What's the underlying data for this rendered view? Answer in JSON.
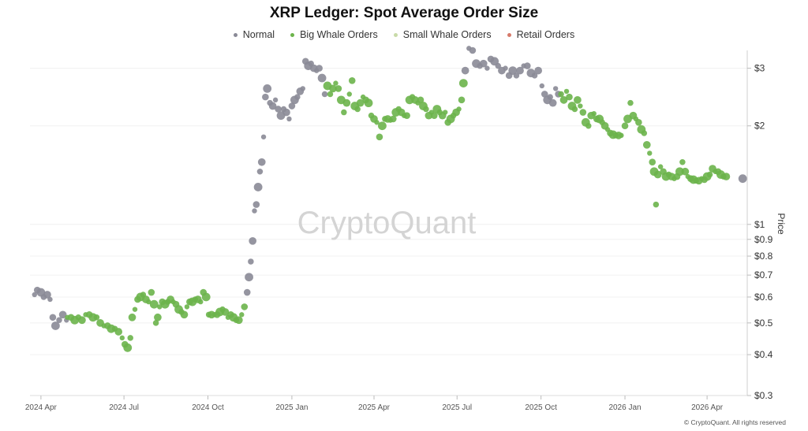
{
  "title": "XRP Ledger: Spot Average Order Size",
  "legend": [
    {
      "label": "Normal",
      "color": "#8a8a96"
    },
    {
      "label": "Big Whale Orders",
      "color": "#6cb44b"
    },
    {
      "label": "Small Whale Orders",
      "color": "#c9dba8"
    },
    {
      "label": "Retail Orders",
      "color": "#d77a6a"
    }
  ],
  "watermark": "CryptoQuant",
  "copyright": "© CryptoQuant. All rights reserved",
  "chart_data": {
    "type": "scatter",
    "title": "XRP Ledger: Spot Average Order Size",
    "ylabel": "Price",
    "yscale": "log",
    "ylim": [
      0.3,
      3.4
    ],
    "xlim": [
      "2024-03-20",
      "2026-05-15"
    ],
    "yticks": [
      {
        "value": 3,
        "label": "$3"
      },
      {
        "value": 2,
        "label": "$2"
      },
      {
        "value": 1,
        "label": "$1"
      },
      {
        "value": 0.9,
        "label": "$0.9"
      },
      {
        "value": 0.8,
        "label": "$0.8"
      },
      {
        "value": 0.7,
        "label": "$0.7"
      },
      {
        "value": 0.6,
        "label": "$0.6"
      },
      {
        "value": 0.5,
        "label": "$0.5"
      },
      {
        "value": 0.4,
        "label": "$0.4"
      },
      {
        "value": 0.3,
        "label": "$0.3"
      }
    ],
    "xticks": [
      {
        "date": "2024-04-01",
        "label": "2024 Apr"
      },
      {
        "date": "2024-07-01",
        "label": "2024 Jul"
      },
      {
        "date": "2024-10-01",
        "label": "2024 Oct"
      },
      {
        "date": "2025-01-01",
        "label": "2025 Jan"
      },
      {
        "date": "2025-04-01",
        "label": "2025 Apr"
      },
      {
        "date": "2025-07-01",
        "label": "2025 Jul"
      },
      {
        "date": "2025-10-01",
        "label": "2025 Oct"
      },
      {
        "date": "2026-01-01",
        "label": "2026 Jan"
      },
      {
        "date": "2026-04-01",
        "label": "2026 Apr"
      }
    ],
    "grid": true,
    "legend_position": "top-center",
    "series": [
      {
        "name": "Normal",
        "color": "#8a8a96",
        "points": [
          [
            "2024-03-25",
            0.61
          ],
          [
            "2024-03-28",
            0.63
          ],
          [
            "2024-04-01",
            0.62
          ],
          [
            "2024-04-04",
            0.6
          ],
          [
            "2024-04-08",
            0.61
          ],
          [
            "2024-04-11",
            0.59
          ],
          [
            "2024-04-14",
            0.52
          ],
          [
            "2024-04-17",
            0.49
          ],
          [
            "2024-04-21",
            0.51
          ],
          [
            "2024-04-25",
            0.53
          ],
          [
            "2024-04-29",
            0.51
          ],
          [
            "2024-11-13",
            0.62
          ],
          [
            "2024-11-15",
            0.69
          ],
          [
            "2024-11-17",
            0.77
          ],
          [
            "2024-11-19",
            0.89
          ],
          [
            "2024-11-21",
            1.1
          ],
          [
            "2024-11-23",
            1.15
          ],
          [
            "2024-11-25",
            1.3
          ],
          [
            "2024-11-27",
            1.45
          ],
          [
            "2024-11-29",
            1.55
          ],
          [
            "2024-12-01",
            1.85
          ],
          [
            "2024-12-03",
            2.45
          ],
          [
            "2024-12-05",
            2.6
          ],
          [
            "2024-12-08",
            2.35
          ],
          [
            "2024-12-11",
            2.3
          ],
          [
            "2024-12-14",
            2.4
          ],
          [
            "2024-12-17",
            2.25
          ],
          [
            "2024-12-20",
            2.15
          ],
          [
            "2024-12-23",
            2.25
          ],
          [
            "2024-12-26",
            2.2
          ],
          [
            "2024-12-29",
            2.1
          ],
          [
            "2025-01-01",
            2.3
          ],
          [
            "2025-01-04",
            2.4
          ],
          [
            "2025-01-07",
            2.45
          ],
          [
            "2025-01-10",
            2.55
          ],
          [
            "2025-01-13",
            2.6
          ],
          [
            "2025-01-16",
            3.15
          ],
          [
            "2025-01-19",
            3.05
          ],
          [
            "2025-01-22",
            3.1
          ],
          [
            "2025-01-25",
            3.0
          ],
          [
            "2025-01-28",
            2.95
          ],
          [
            "2025-01-31",
            3.0
          ],
          [
            "2025-02-03",
            2.8
          ],
          [
            "2025-02-06",
            2.5
          ],
          [
            "2025-07-10",
            2.95
          ],
          [
            "2025-07-14",
            3.45
          ],
          [
            "2025-07-18",
            3.4
          ],
          [
            "2025-07-22",
            3.1
          ],
          [
            "2025-07-26",
            3.05
          ],
          [
            "2025-07-30",
            3.1
          ],
          [
            "2025-08-03",
            3.0
          ],
          [
            "2025-08-07",
            3.2
          ],
          [
            "2025-08-11",
            3.15
          ],
          [
            "2025-08-15",
            3.05
          ],
          [
            "2025-08-19",
            2.95
          ],
          [
            "2025-08-23",
            3.0
          ],
          [
            "2025-08-27",
            2.85
          ],
          [
            "2025-08-31",
            2.95
          ],
          [
            "2025-09-04",
            2.85
          ],
          [
            "2025-09-08",
            2.95
          ],
          [
            "2025-09-12",
            3.05
          ],
          [
            "2025-09-16",
            3.05
          ],
          [
            "2025-09-20",
            2.9
          ],
          [
            "2025-09-24",
            2.85
          ],
          [
            "2025-09-28",
            2.95
          ],
          [
            "2025-10-02",
            2.65
          ],
          [
            "2025-10-05",
            2.5
          ],
          [
            "2025-10-08",
            2.4
          ],
          [
            "2025-10-11",
            2.45
          ],
          [
            "2025-10-14",
            2.35
          ],
          [
            "2025-10-17",
            2.6
          ],
          [
            "2025-10-20",
            2.5
          ],
          [
            "2026-05-10",
            1.38
          ]
        ]
      },
      {
        "name": "Big Whale Orders",
        "color": "#6cb44b",
        "points": [
          [
            "2024-04-30",
            0.52
          ],
          [
            "2024-05-04",
            0.52
          ],
          [
            "2024-05-08",
            0.51
          ],
          [
            "2024-05-12",
            0.52
          ],
          [
            "2024-05-16",
            0.51
          ],
          [
            "2024-05-20",
            0.53
          ],
          [
            "2024-05-24",
            0.53
          ],
          [
            "2024-05-28",
            0.52
          ],
          [
            "2024-06-01",
            0.52
          ],
          [
            "2024-06-05",
            0.5
          ],
          [
            "2024-06-09",
            0.49
          ],
          [
            "2024-06-13",
            0.49
          ],
          [
            "2024-06-17",
            0.48
          ],
          [
            "2024-06-21",
            0.48
          ],
          [
            "2024-06-25",
            0.47
          ],
          [
            "2024-06-29",
            0.45
          ],
          [
            "2024-07-02",
            0.43
          ],
          [
            "2024-07-05",
            0.42
          ],
          [
            "2024-07-08",
            0.45
          ],
          [
            "2024-07-10",
            0.52
          ],
          [
            "2024-07-13",
            0.55
          ],
          [
            "2024-07-16",
            0.59
          ],
          [
            "2024-07-19",
            0.6
          ],
          [
            "2024-07-22",
            0.61
          ],
          [
            "2024-07-25",
            0.59
          ],
          [
            "2024-07-28",
            0.58
          ],
          [
            "2024-07-31",
            0.62
          ],
          [
            "2024-08-03",
            0.57
          ],
          [
            "2024-08-05",
            0.5
          ],
          [
            "2024-08-07",
            0.52
          ],
          [
            "2024-08-09",
            0.56
          ],
          [
            "2024-08-12",
            0.58
          ],
          [
            "2024-08-15",
            0.57
          ],
          [
            "2024-08-18",
            0.58
          ],
          [
            "2024-08-21",
            0.59
          ],
          [
            "2024-08-24",
            0.58
          ],
          [
            "2024-08-27",
            0.57
          ],
          [
            "2024-08-30",
            0.55
          ],
          [
            "2024-09-02",
            0.54
          ],
          [
            "2024-09-05",
            0.53
          ],
          [
            "2024-09-08",
            0.56
          ],
          [
            "2024-09-11",
            0.58
          ],
          [
            "2024-09-14",
            0.58
          ],
          [
            "2024-09-17",
            0.59
          ],
          [
            "2024-09-20",
            0.59
          ],
          [
            "2024-09-23",
            0.58
          ],
          [
            "2024-09-26",
            0.62
          ],
          [
            "2024-09-29",
            0.6
          ],
          [
            "2024-10-02",
            0.53
          ],
          [
            "2024-10-05",
            0.53
          ],
          [
            "2024-10-08",
            0.53
          ],
          [
            "2024-10-11",
            0.53
          ],
          [
            "2024-10-14",
            0.54
          ],
          [
            "2024-10-17",
            0.55
          ],
          [
            "2024-10-20",
            0.54
          ],
          [
            "2024-10-23",
            0.52
          ],
          [
            "2024-10-26",
            0.53
          ],
          [
            "2024-10-29",
            0.52
          ],
          [
            "2024-11-01",
            0.51
          ],
          [
            "2024-11-04",
            0.51
          ],
          [
            "2024-11-07",
            0.53
          ],
          [
            "2024-11-10",
            0.56
          ],
          [
            "2025-02-09",
            2.65
          ],
          [
            "2025-02-12",
            2.5
          ],
          [
            "2025-02-15",
            2.6
          ],
          [
            "2025-02-18",
            2.7
          ],
          [
            "2025-02-21",
            2.6
          ],
          [
            "2025-02-24",
            2.4
          ],
          [
            "2025-02-27",
            2.2
          ],
          [
            "2025-03-02",
            2.35
          ],
          [
            "2025-03-05",
            2.5
          ],
          [
            "2025-03-08",
            2.75
          ],
          [
            "2025-03-11",
            2.3
          ],
          [
            "2025-03-14",
            2.25
          ],
          [
            "2025-03-17",
            2.35
          ],
          [
            "2025-03-20",
            2.45
          ],
          [
            "2025-03-23",
            2.4
          ],
          [
            "2025-03-26",
            2.35
          ],
          [
            "2025-03-29",
            2.15
          ],
          [
            "2025-04-01",
            2.1
          ],
          [
            "2025-04-04",
            2.05
          ],
          [
            "2025-04-07",
            1.85
          ],
          [
            "2025-04-10",
            2.0
          ],
          [
            "2025-04-13",
            2.1
          ],
          [
            "2025-04-16",
            2.1
          ],
          [
            "2025-04-19",
            2.08
          ],
          [
            "2025-04-22",
            2.1
          ],
          [
            "2025-04-25",
            2.2
          ],
          [
            "2025-04-28",
            2.25
          ],
          [
            "2025-05-01",
            2.2
          ],
          [
            "2025-05-04",
            2.15
          ],
          [
            "2025-05-07",
            2.15
          ],
          [
            "2025-05-10",
            2.4
          ],
          [
            "2025-05-13",
            2.45
          ],
          [
            "2025-05-16",
            2.4
          ],
          [
            "2025-05-19",
            2.35
          ],
          [
            "2025-05-22",
            2.4
          ],
          [
            "2025-05-25",
            2.3
          ],
          [
            "2025-05-28",
            2.25
          ],
          [
            "2025-05-31",
            2.15
          ],
          [
            "2025-06-03",
            2.2
          ],
          [
            "2025-06-06",
            2.15
          ],
          [
            "2025-06-09",
            2.25
          ],
          [
            "2025-06-12",
            2.2
          ],
          [
            "2025-06-15",
            2.15
          ],
          [
            "2025-06-18",
            2.2
          ],
          [
            "2025-06-21",
            2.05
          ],
          [
            "2025-06-24",
            2.1
          ],
          [
            "2025-06-27",
            2.15
          ],
          [
            "2025-06-30",
            2.2
          ],
          [
            "2025-07-03",
            2.25
          ],
          [
            "2025-07-06",
            2.4
          ],
          [
            "2025-07-08",
            2.7
          ],
          [
            "2025-10-23",
            2.5
          ],
          [
            "2025-10-26",
            2.4
          ],
          [
            "2025-10-29",
            2.55
          ],
          [
            "2025-11-01",
            2.45
          ],
          [
            "2025-11-04",
            2.3
          ],
          [
            "2025-11-07",
            2.25
          ],
          [
            "2025-11-10",
            2.4
          ],
          [
            "2025-11-13",
            2.3
          ],
          [
            "2025-11-16",
            2.2
          ],
          [
            "2025-11-19",
            2.05
          ],
          [
            "2025-11-22",
            2.0
          ],
          [
            "2025-11-25",
            2.15
          ],
          [
            "2025-11-28",
            2.18
          ],
          [
            "2025-12-01",
            2.1
          ],
          [
            "2025-12-04",
            2.1
          ],
          [
            "2025-12-07",
            2.05
          ],
          [
            "2025-12-10",
            2.0
          ],
          [
            "2025-12-13",
            1.95
          ],
          [
            "2025-12-16",
            1.9
          ],
          [
            "2025-12-19",
            1.88
          ],
          [
            "2025-12-22",
            1.87
          ],
          [
            "2025-12-25",
            1.87
          ],
          [
            "2025-12-28",
            1.87
          ],
          [
            "2026-01-01",
            2.0
          ],
          [
            "2026-01-04",
            2.1
          ],
          [
            "2026-01-07",
            2.35
          ],
          [
            "2026-01-10",
            2.15
          ],
          [
            "2026-01-13",
            2.1
          ],
          [
            "2026-01-16",
            2.05
          ],
          [
            "2026-01-19",
            1.95
          ],
          [
            "2026-01-22",
            1.9
          ],
          [
            "2026-01-25",
            1.75
          ],
          [
            "2026-01-28",
            1.65
          ],
          [
            "2026-01-31",
            1.55
          ],
          [
            "2026-02-02",
            1.45
          ],
          [
            "2026-02-04",
            1.15
          ],
          [
            "2026-02-06",
            1.42
          ],
          [
            "2026-02-09",
            1.5
          ],
          [
            "2026-02-12",
            1.45
          ],
          [
            "2026-02-15",
            1.4
          ],
          [
            "2026-02-18",
            1.42
          ],
          [
            "2026-02-21",
            1.4
          ],
          [
            "2026-02-24",
            1.38
          ],
          [
            "2026-02-27",
            1.4
          ],
          [
            "2026-03-02",
            1.45
          ],
          [
            "2026-03-05",
            1.55
          ],
          [
            "2026-03-08",
            1.45
          ],
          [
            "2026-03-11",
            1.4
          ],
          [
            "2026-03-14",
            1.38
          ],
          [
            "2026-03-17",
            1.37
          ],
          [
            "2026-03-20",
            1.36
          ],
          [
            "2026-03-23",
            1.36
          ],
          [
            "2026-03-26",
            1.38
          ],
          [
            "2026-03-29",
            1.37
          ],
          [
            "2026-04-01",
            1.4
          ],
          [
            "2026-04-04",
            1.42
          ],
          [
            "2026-04-07",
            1.48
          ],
          [
            "2026-04-10",
            1.45
          ],
          [
            "2026-04-13",
            1.45
          ],
          [
            "2026-04-16",
            1.42
          ],
          [
            "2026-04-19",
            1.4
          ],
          [
            "2026-04-22",
            1.4
          ]
        ]
      },
      {
        "name": "Small Whale Orders",
        "color": "#c9dba8",
        "points": []
      },
      {
        "name": "Retail Orders",
        "color": "#d77a6a",
        "points": []
      }
    ]
  }
}
